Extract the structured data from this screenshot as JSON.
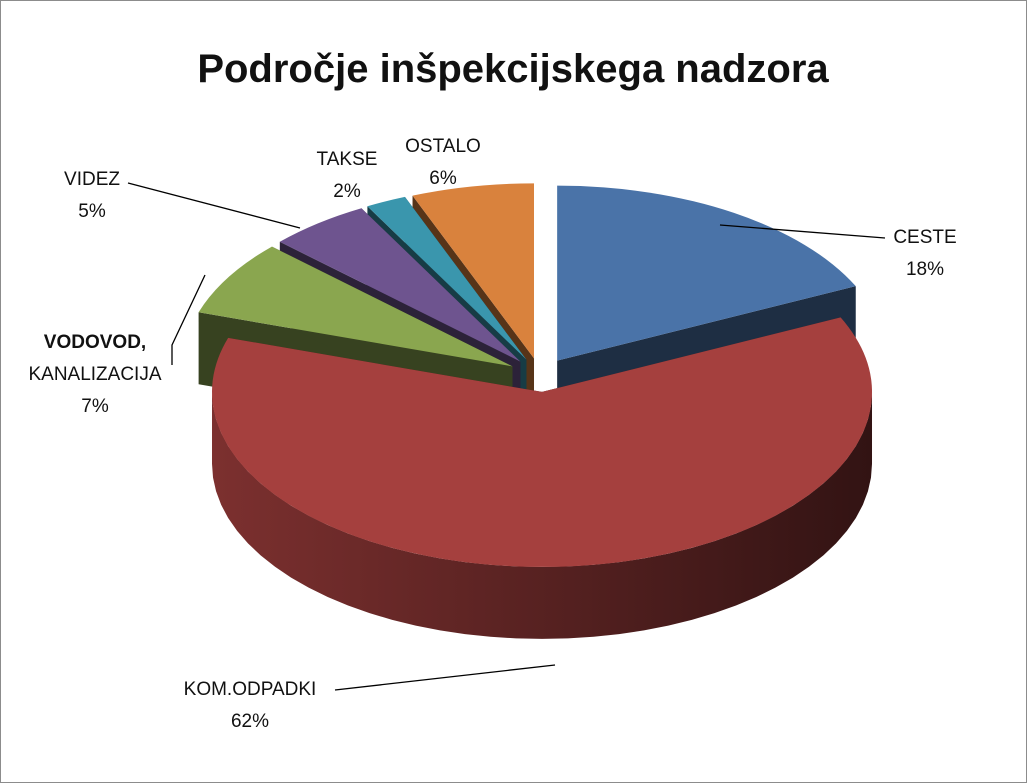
{
  "chart_data": {
    "type": "pie3d",
    "title": "Področje inšpekcijskega nadzora",
    "categories": [
      "CESTE",
      "KOM.ODPADKI",
      "VODOVOD, KANALIZACIJA",
      "VIDEZ",
      "TAKSE",
      "OSTALO"
    ],
    "values": [
      18,
      62,
      7,
      5,
      2,
      6
    ],
    "value_labels": [
      "18%",
      "62%",
      "7%",
      "5%",
      "2%",
      "6%"
    ],
    "colors": [
      "#4a73a8",
      "#a5403e",
      "#8aa64f",
      "#6e548f",
      "#3a96ad",
      "#d9823d"
    ]
  }
}
